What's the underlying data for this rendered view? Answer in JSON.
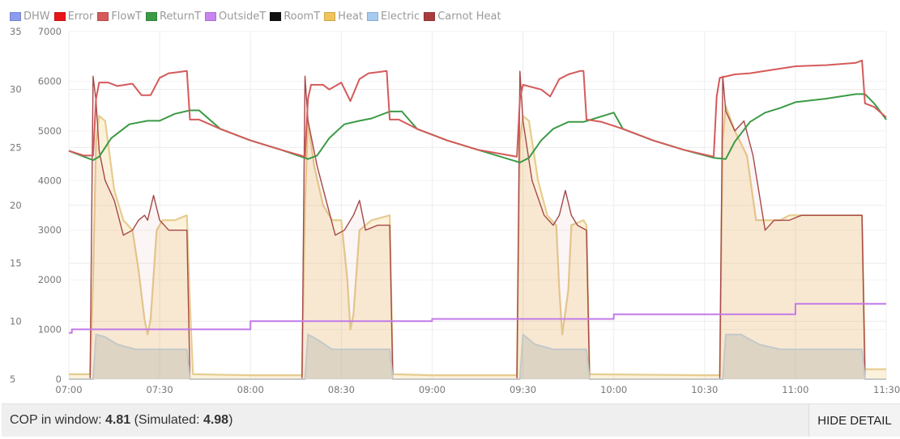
{
  "chart_data": {
    "type": "line",
    "legend": [
      {
        "name": "DHW",
        "color": "#8c9cf0"
      },
      {
        "name": "Error",
        "color": "#e8141a"
      },
      {
        "name": "FlowT",
        "color": "#d55a5a"
      },
      {
        "name": "ReturnT",
        "color": "#3b9a45"
      },
      {
        "name": "OutsideT",
        "color": "#c885f0"
      },
      {
        "name": "RoomT",
        "color": "#111111"
      },
      {
        "name": "Heat",
        "color": "#f0c45a"
      },
      {
        "name": "Electric",
        "color": "#a6cbf0"
      },
      {
        "name": "Carnot Heat",
        "color": "#a83c3c"
      }
    ],
    "legend_position": "top-left",
    "grid": true,
    "x_range": [
      "07:00",
      "11:30"
    ],
    "x_ticks": [
      "07:00",
      "07:30",
      "08:00",
      "08:30",
      "09:00",
      "09:30",
      "10:00",
      "10:30",
      "11:00",
      "11:30"
    ],
    "y_left": {
      "range": [
        5,
        35
      ],
      "ticks": [
        "5",
        "10",
        "15",
        "20",
        "25",
        "30",
        "35"
      ]
    },
    "y_right": {
      "range": [
        0,
        7000
      ],
      "ticks": [
        "0",
        "1000",
        "2000",
        "3000",
        "4000",
        "5000",
        "6000",
        "7000"
      ]
    },
    "series": [
      {
        "name": "FlowT",
        "axis": "left",
        "points": [
          [
            "07:00",
            24.7
          ],
          [
            "07:05",
            24.3
          ],
          [
            "07:08",
            24.3
          ],
          [
            "07:09",
            29.2
          ],
          [
            "07:10",
            30.6
          ],
          [
            "07:13",
            30.6
          ],
          [
            "07:16",
            30.3
          ],
          [
            "07:21",
            30.5
          ],
          [
            "07:24",
            29.5
          ],
          [
            "07:27",
            29.5
          ],
          [
            "07:30",
            31.0
          ],
          [
            "07:33",
            31.4
          ],
          [
            "07:36",
            31.5
          ],
          [
            "07:39",
            31.6
          ],
          [
            "07:40",
            27.4
          ],
          [
            "07:43",
            27.4
          ],
          [
            "07:50",
            26.6
          ],
          [
            "08:00",
            25.6
          ],
          [
            "08:10",
            24.8
          ],
          [
            "08:18",
            24.2
          ],
          [
            "08:19",
            29.2
          ],
          [
            "08:20",
            30.4
          ],
          [
            "08:24",
            30.4
          ],
          [
            "08:26",
            30.0
          ],
          [
            "08:30",
            30.6
          ],
          [
            "08:33",
            29.0
          ],
          [
            "08:36",
            30.9
          ],
          [
            "08:39",
            31.4
          ],
          [
            "08:42",
            31.5
          ],
          [
            "08:45",
            31.6
          ],
          [
            "08:46",
            27.4
          ],
          [
            "08:49",
            27.4
          ],
          [
            "08:55",
            26.6
          ],
          [
            "09:05",
            25.6
          ],
          [
            "09:15",
            24.8
          ],
          [
            "09:28",
            24.2
          ],
          [
            "09:29",
            29.2
          ],
          [
            "09:30",
            30.4
          ],
          [
            "09:36",
            30.0
          ],
          [
            "09:39",
            29.4
          ],
          [
            "09:42",
            30.9
          ],
          [
            "09:45",
            31.3
          ],
          [
            "09:49",
            31.6
          ],
          [
            "09:50",
            31.6
          ],
          [
            "09:51",
            27.4
          ],
          [
            "09:56",
            27.2
          ],
          [
            "10:03",
            26.6
          ],
          [
            "10:13",
            25.6
          ],
          [
            "10:23",
            24.8
          ],
          [
            "10:33",
            24.2
          ],
          [
            "10:34",
            29.4
          ],
          [
            "10:35",
            31.0
          ],
          [
            "10:40",
            31.3
          ],
          [
            "10:45",
            31.4
          ],
          [
            "10:50",
            31.6
          ],
          [
            "10:55",
            31.8
          ],
          [
            "11:00",
            32.0
          ],
          [
            "11:10",
            32.1
          ],
          [
            "11:20",
            32.3
          ],
          [
            "11:22",
            32.5
          ],
          [
            "11:23",
            28.8
          ],
          [
            "11:26",
            28.5
          ],
          [
            "11:30",
            27.6
          ]
        ]
      },
      {
        "name": "ReturnT",
        "axis": "left",
        "points": [
          [
            "07:00",
            24.7
          ],
          [
            "07:05",
            24.2
          ],
          [
            "07:08",
            23.9
          ],
          [
            "07:10",
            24.2
          ],
          [
            "07:14",
            25.8
          ],
          [
            "07:20",
            27.0
          ],
          [
            "07:26",
            27.3
          ],
          [
            "07:30",
            27.3
          ],
          [
            "07:35",
            27.9
          ],
          [
            "07:40",
            28.2
          ],
          [
            "07:43",
            28.2
          ],
          [
            "07:50",
            26.6
          ],
          [
            "08:00",
            25.6
          ],
          [
            "08:10",
            24.8
          ],
          [
            "08:19",
            24.0
          ],
          [
            "08:22",
            24.3
          ],
          [
            "08:26",
            25.8
          ],
          [
            "08:31",
            27.0
          ],
          [
            "08:36",
            27.3
          ],
          [
            "08:40",
            27.5
          ],
          [
            "08:46",
            28.1
          ],
          [
            "08:50",
            28.1
          ],
          [
            "08:55",
            26.6
          ],
          [
            "09:05",
            25.6
          ],
          [
            "09:15",
            24.8
          ],
          [
            "09:29",
            23.7
          ],
          [
            "09:32",
            24.1
          ],
          [
            "09:36",
            25.6
          ],
          [
            "09:40",
            26.6
          ],
          [
            "09:45",
            27.2
          ],
          [
            "09:50",
            27.2
          ],
          [
            "09:55",
            27.6
          ],
          [
            "10:00",
            28.0
          ],
          [
            "10:03",
            26.6
          ],
          [
            "10:13",
            25.6
          ],
          [
            "10:23",
            24.8
          ],
          [
            "10:33",
            24.1
          ],
          [
            "10:37",
            24.0
          ],
          [
            "10:40",
            25.5
          ],
          [
            "10:45",
            27.2
          ],
          [
            "10:50",
            28.0
          ],
          [
            "10:55",
            28.4
          ],
          [
            "11:00",
            28.9
          ],
          [
            "11:10",
            29.2
          ],
          [
            "11:20",
            29.6
          ],
          [
            "11:23",
            29.6
          ],
          [
            "11:26",
            28.8
          ],
          [
            "11:30",
            27.4
          ]
        ]
      },
      {
        "name": "OutsideT",
        "axis": "left",
        "points": [
          [
            "07:00",
            9.0
          ],
          [
            "07:01",
            9.0
          ],
          [
            "07:01",
            9.3
          ],
          [
            "08:00",
            9.3
          ],
          [
            "08:00",
            10.0
          ],
          [
            "09:00",
            10.0
          ],
          [
            "09:00",
            10.2
          ],
          [
            "10:00",
            10.2
          ],
          [
            "10:00",
            10.6
          ],
          [
            "11:00",
            10.6
          ],
          [
            "11:00",
            11.5
          ],
          [
            "11:30",
            11.5
          ]
        ]
      },
      {
        "name": "Heat",
        "axis": "right",
        "points": [
          [
            "07:00",
            100
          ],
          [
            "07:07",
            100
          ],
          [
            "07:08",
            2000
          ],
          [
            "07:09",
            4800
          ],
          [
            "07:10",
            5300
          ],
          [
            "07:12",
            5200
          ],
          [
            "07:15",
            3800
          ],
          [
            "07:18",
            3200
          ],
          [
            "07:21",
            3000
          ],
          [
            "07:23",
            2200
          ],
          [
            "07:25",
            1200
          ],
          [
            "07:26",
            900
          ],
          [
            "07:27",
            1200
          ],
          [
            "07:29",
            3000
          ],
          [
            "07:31",
            3200
          ],
          [
            "07:35",
            3200
          ],
          [
            "07:39",
            3300
          ],
          [
            "07:40",
            1500
          ],
          [
            "07:41",
            100
          ],
          [
            "08:00",
            80
          ],
          [
            "08:17",
            80
          ],
          [
            "08:18",
            3500
          ],
          [
            "08:19",
            5200
          ],
          [
            "08:21",
            4300
          ],
          [
            "08:24",
            3500
          ],
          [
            "08:27",
            3200
          ],
          [
            "08:30",
            3200
          ],
          [
            "08:32",
            2000
          ],
          [
            "08:33",
            1000
          ],
          [
            "08:34",
            1300
          ],
          [
            "08:36",
            3000
          ],
          [
            "08:40",
            3200
          ],
          [
            "08:46",
            3300
          ],
          [
            "08:47",
            100
          ],
          [
            "09:00",
            80
          ],
          [
            "09:28",
            80
          ],
          [
            "09:29",
            4800
          ],
          [
            "09:30",
            5300
          ],
          [
            "09:32",
            5200
          ],
          [
            "09:35",
            4000
          ],
          [
            "09:38",
            3300
          ],
          [
            "09:41",
            3100
          ],
          [
            "09:42",
            1800
          ],
          [
            "09:43",
            900
          ],
          [
            "09:45",
            1800
          ],
          [
            "09:46",
            3100
          ],
          [
            "09:50",
            3200
          ],
          [
            "09:51",
            3100
          ],
          [
            "09:52",
            100
          ],
          [
            "10:30",
            80
          ],
          [
            "10:35",
            80
          ],
          [
            "10:36",
            4800
          ],
          [
            "10:37",
            5500
          ],
          [
            "10:40",
            5000
          ],
          [
            "10:44",
            4500
          ],
          [
            "10:47",
            3200
          ],
          [
            "10:55",
            3200
          ],
          [
            "10:58",
            3300
          ],
          [
            "11:22",
            3300
          ],
          [
            "11:23",
            200
          ],
          [
            "11:30",
            200
          ]
        ]
      },
      {
        "name": "Electric",
        "axis": "right",
        "points": [
          [
            "07:00",
            0
          ],
          [
            "07:08",
            0
          ],
          [
            "07:09",
            900
          ],
          [
            "07:12",
            850
          ],
          [
            "07:16",
            700
          ],
          [
            "07:22",
            600
          ],
          [
            "07:27",
            600
          ],
          [
            "07:33",
            600
          ],
          [
            "07:39",
            600
          ],
          [
            "07:40",
            0
          ],
          [
            "08:18",
            0
          ],
          [
            "08:19",
            900
          ],
          [
            "08:22",
            800
          ],
          [
            "08:27",
            600
          ],
          [
            "08:36",
            600
          ],
          [
            "08:46",
            600
          ],
          [
            "08:47",
            0
          ],
          [
            "09:29",
            0
          ],
          [
            "09:30",
            900
          ],
          [
            "09:34",
            700
          ],
          [
            "09:40",
            600
          ],
          [
            "09:51",
            600
          ],
          [
            "09:52",
            0
          ],
          [
            "10:36",
            0
          ],
          [
            "10:37",
            900
          ],
          [
            "10:42",
            900
          ],
          [
            "10:48",
            700
          ],
          [
            "10:55",
            600
          ],
          [
            "11:22",
            600
          ],
          [
            "11:23",
            0
          ],
          [
            "11:30",
            0
          ]
        ]
      },
      {
        "name": "Carnot Heat",
        "axis": "right",
        "points": [
          [
            "07:00",
            0
          ],
          [
            "07:07",
            0
          ],
          [
            "07:08",
            6100
          ],
          [
            "07:09",
            5600
          ],
          [
            "07:10",
            4600
          ],
          [
            "07:12",
            4000
          ],
          [
            "07:15",
            3600
          ],
          [
            "07:18",
            2900
          ],
          [
            "07:21",
            3000
          ],
          [
            "07:23",
            3200
          ],
          [
            "07:25",
            3300
          ],
          [
            "07:26",
            3200
          ],
          [
            "07:28",
            3700
          ],
          [
            "07:30",
            3200
          ],
          [
            "07:33",
            3000
          ],
          [
            "07:39",
            3000
          ],
          [
            "07:40",
            0
          ],
          [
            "08:17",
            0
          ],
          [
            "08:18",
            6100
          ],
          [
            "08:19",
            5200
          ],
          [
            "08:22",
            4300
          ],
          [
            "08:25",
            3600
          ],
          [
            "08:28",
            2900
          ],
          [
            "08:31",
            3000
          ],
          [
            "08:34",
            3300
          ],
          [
            "08:36",
            3600
          ],
          [
            "08:38",
            3000
          ],
          [
            "08:42",
            3100
          ],
          [
            "08:46",
            3100
          ],
          [
            "08:47",
            0
          ],
          [
            "09:28",
            0
          ],
          [
            "09:29",
            6200
          ],
          [
            "09:30",
            5200
          ],
          [
            "09:33",
            4000
          ],
          [
            "09:37",
            3300
          ],
          [
            "09:40",
            3100
          ],
          [
            "09:42",
            3300
          ],
          [
            "09:44",
            3800
          ],
          [
            "09:46",
            3300
          ],
          [
            "09:48",
            3100
          ],
          [
            "09:51",
            3000
          ],
          [
            "09:52",
            0
          ],
          [
            "10:35",
            0
          ],
          [
            "10:36",
            6100
          ],
          [
            "10:37",
            5400
          ],
          [
            "10:40",
            5000
          ],
          [
            "10:43",
            5200
          ],
          [
            "10:46",
            4500
          ],
          [
            "10:50",
            3000
          ],
          [
            "10:53",
            3200
          ],
          [
            "10:58",
            3200
          ],
          [
            "11:02",
            3300
          ],
          [
            "11:22",
            3300
          ],
          [
            "11:23",
            0
          ],
          [
            "11:30",
            0
          ]
        ]
      }
    ]
  },
  "footer": {
    "cop_label": "COP in window: ",
    "cop_value": "4.81",
    "sim_open": " (Simulated: ",
    "sim_value": "4.98",
    "sim_close": ")",
    "hide_button": "HIDE DETAIL"
  }
}
